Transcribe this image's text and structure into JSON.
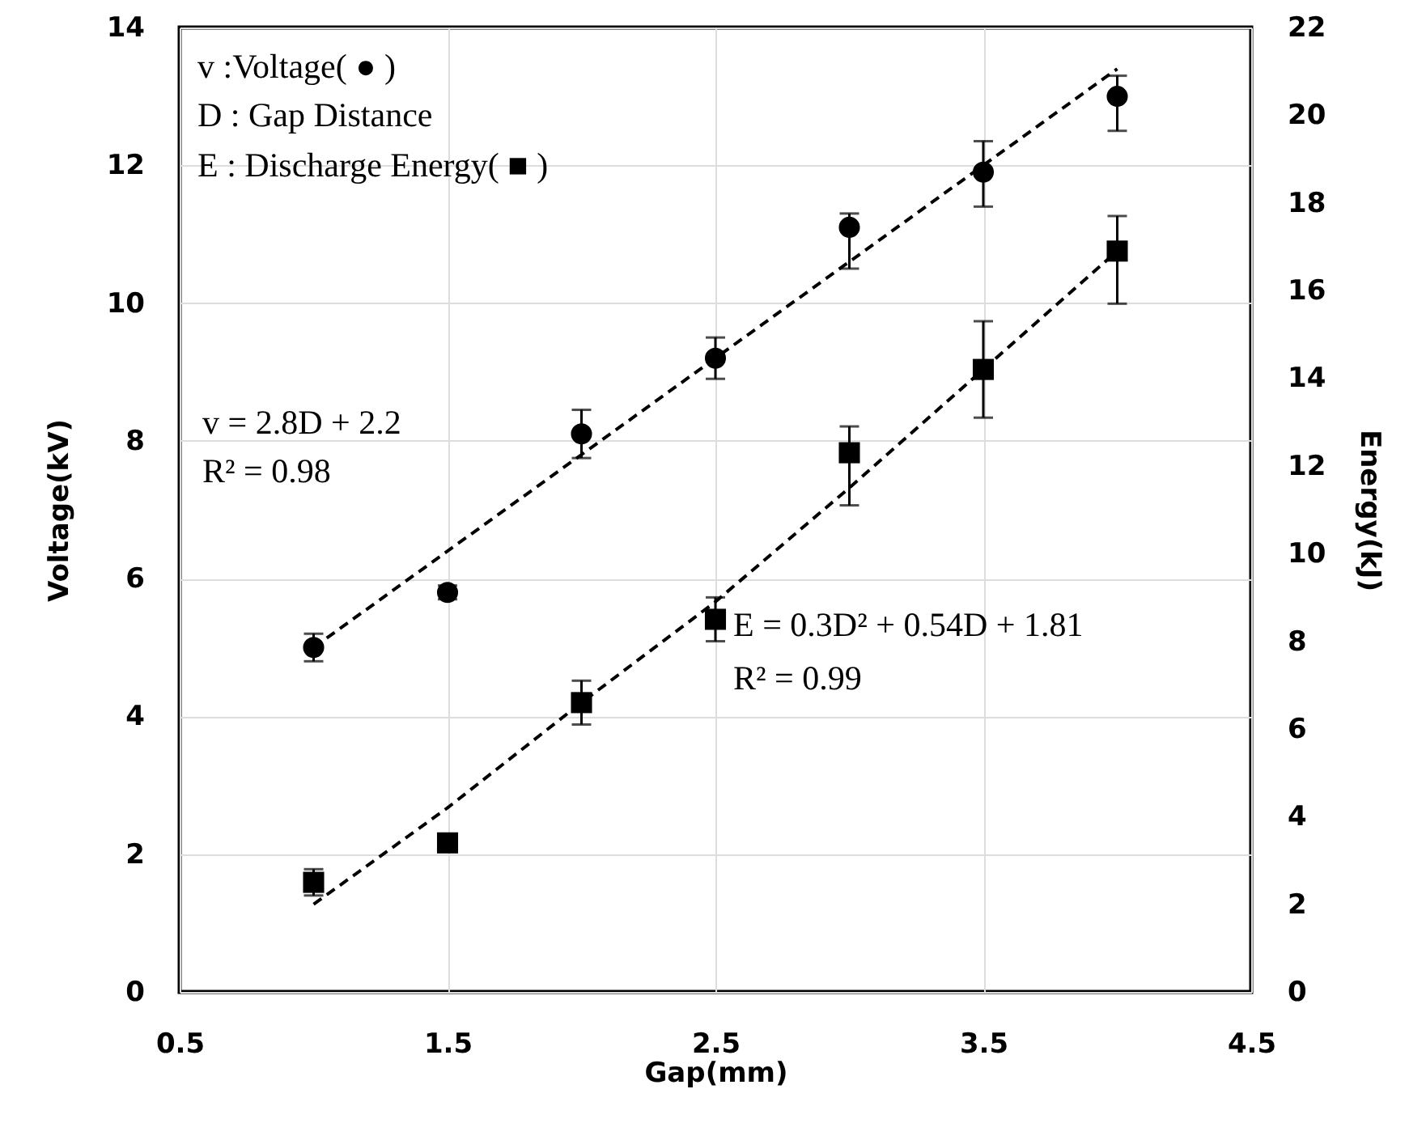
{
  "chart_data": {
    "type": "scatter",
    "xlabel": "Gap(mm)",
    "ylabel": "Voltage(kV)",
    "y2label": "Energy(kJ)",
    "x": [
      1,
      1.5,
      2,
      2.5,
      3,
      3.5,
      4
    ],
    "xlim": [
      0.5,
      4.5
    ],
    "xticks": [
      0.5,
      1.5,
      2.5,
      3.5,
      4.5
    ],
    "ylim": [
      0,
      14
    ],
    "yticks": [
      0,
      2,
      4,
      6,
      8,
      10,
      12,
      14
    ],
    "y2lim": [
      0,
      22
    ],
    "y2ticks": [
      0,
      2,
      4,
      6,
      8,
      10,
      12,
      14,
      16,
      18,
      20,
      22
    ],
    "grid": true,
    "annotations": [
      "v :Voltage( ● )",
      "D : Gap Distance",
      "E : Discharge Energy( ■ )",
      "v = 2.8D + 2.2",
      "R² = 0.98",
      "E = 0.3D² + 0.54D + 1.81",
      "R² = 0.99"
    ],
    "series": [
      {
        "type": "scatter",
        "marker": "circle",
        "color": "#000000",
        "values": [
          5.0,
          5.8,
          8.1,
          9.2,
          11.1,
          11.9,
          13.0
        ],
        "errors": [
          0.2,
          0.1,
          0.35,
          0.3,
          [
            10.5,
            11.3
          ],
          [
            11.4,
            12.35
          ],
          [
            12.5,
            13.3
          ]
        ]
      },
      {
        "type": "scatter",
        "marker": "square",
        "axis": "y2",
        "color": "#000000",
        "values": [
          2.5,
          3.4,
          6.6,
          8.5,
          12.3,
          14.2,
          16.9
        ],
        "errors": [
          0.3,
          null,
          [
            6.1,
            7.1
          ],
          0.5,
          [
            11.1,
            12.9
          ],
          [
            13.1,
            15.3
          ],
          [
            15.7,
            17.7
          ]
        ]
      },
      {
        "type": "line",
        "line_style": "dashed",
        "color": "#000000",
        "x": [
          1,
          4
        ],
        "values": [
          5.0,
          13.4
        ]
      },
      {
        "type": "line",
        "line_style": "dashed",
        "axis": "y2",
        "color": "#000000",
        "x": [
          1,
          1.5,
          2,
          2.5,
          3,
          3.5,
          4
        ],
        "values": [
          2.0,
          4.2,
          6.6,
          8.9,
          11.5,
          14.2,
          16.9
        ]
      }
    ]
  }
}
